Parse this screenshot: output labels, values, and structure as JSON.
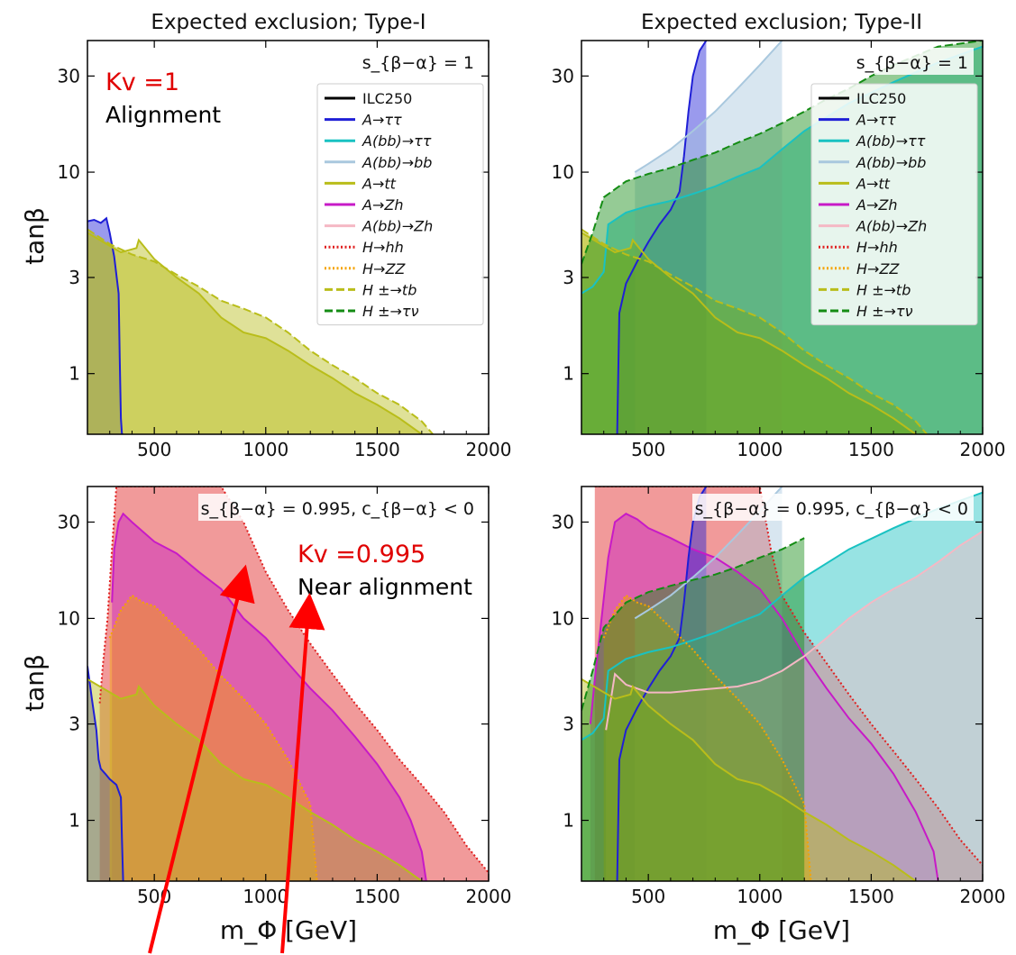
{
  "chart_data": [
    {
      "type": "area",
      "title": "Expected exclusion; Type-I",
      "xlabel": "",
      "ylabel": "tanβ",
      "xlim": [
        200,
        2000
      ],
      "ylim": [
        0.5,
        45
      ],
      "yscale": "log",
      "x_ticks": [
        500,
        1000,
        1500,
        2000
      ],
      "y_ticks": [
        1,
        3,
        10,
        30
      ],
      "legend_title": "s_{β−α} = 1",
      "legend_placement": "top-right",
      "annotation_red": "Kv =1",
      "annotation_black": "Alignment",
      "series": [
        {
          "name": "A→ττ",
          "color": "#1f1fd6",
          "style": "solid",
          "x": [
            200,
            230,
            260,
            285,
            300,
            320,
            340,
            345,
            350,
            355,
            360
          ],
          "y": [
            5.7,
            5.8,
            5.6,
            5.9,
            5.0,
            3.8,
            2.5,
            1.2,
            0.6,
            0.5,
            0.5
          ]
        },
        {
          "name": "A→tt",
          "color": "#b9bd1a",
          "style": "solid",
          "x": [
            200,
            350,
            420,
            430,
            500,
            600,
            700,
            800,
            900,
            1000,
            1100,
            1200,
            1300,
            1400,
            1500,
            1600,
            1700
          ],
          "y": [
            5.0,
            4.0,
            4.2,
            4.6,
            3.7,
            3.0,
            2.5,
            1.9,
            1.6,
            1.5,
            1.3,
            1.1,
            0.95,
            0.8,
            0.7,
            0.6,
            0.5
          ]
        },
        {
          "name": "H ±→tb",
          "color": "#b9bd1a",
          "style": "dashed",
          "x": [
            200,
            300,
            400,
            500,
            600,
            700,
            800,
            900,
            1000,
            1100,
            1200,
            1300,
            1400,
            1500,
            1600,
            1700,
            1750
          ],
          "y": [
            5.2,
            4.4,
            3.9,
            3.6,
            3.1,
            2.7,
            2.3,
            2.1,
            1.9,
            1.6,
            1.3,
            1.1,
            0.95,
            0.8,
            0.7,
            0.58,
            0.5
          ]
        }
      ]
    },
    {
      "type": "area",
      "title": "Expected exclusion; Type-II",
      "xlabel": "",
      "ylabel": "",
      "xlim": [
        200,
        2000
      ],
      "ylim": [
        0.5,
        45
      ],
      "yscale": "log",
      "x_ticks": [
        500,
        1000,
        1500,
        2000
      ],
      "y_ticks": [
        1,
        3,
        10,
        30
      ],
      "legend_title": "s_{β−α} = 1",
      "legend_placement": "top-right",
      "legend_items": [
        {
          "name": "ILC250",
          "color": "#000000",
          "style": "solid"
        },
        {
          "name": "A→ττ",
          "color": "#1f1fd6",
          "style": "solid"
        },
        {
          "name": "A(bb)→ττ",
          "color": "#19c2c2",
          "style": "solid"
        },
        {
          "name": "A(bb)→bb",
          "color": "#a9c8de",
          "style": "solid"
        },
        {
          "name": "A→tt",
          "color": "#b9bd1a",
          "style": "solid"
        },
        {
          "name": "A→Zh",
          "color": "#c71ac7",
          "style": "solid"
        },
        {
          "name": "A(bb)→Zh",
          "color": "#f5b8c4",
          "style": "solid"
        },
        {
          "name": "H→hh",
          "color": "#e02020",
          "style": "dotted"
        },
        {
          "name": "H→ZZ",
          "color": "#f5a300",
          "style": "dotted"
        },
        {
          "name": "H ±→tb",
          "color": "#b9bd1a",
          "style": "dashed"
        },
        {
          "name": "H ±→τν",
          "color": "#148c14",
          "style": "dashed"
        }
      ],
      "series": [
        {
          "name": "A→ττ",
          "color": "#1f1fd6",
          "style": "solid",
          "x": [
            360,
            370,
            400,
            450,
            500,
            550,
            600,
            640,
            660,
            680,
            700,
            730,
            760
          ],
          "y": [
            0.5,
            2.0,
            2.8,
            3.6,
            4.5,
            5.5,
            6.5,
            8.0,
            12,
            20,
            30,
            40,
            45
          ]
        },
        {
          "name": "A(bb)→ττ",
          "color": "#19c2c2",
          "style": "solid",
          "x": [
            200,
            250,
            300,
            320,
            400,
            500,
            600,
            700,
            800,
            900,
            1000,
            1100,
            1200,
            1400,
            1600,
            1800,
            2000
          ],
          "y": [
            2.5,
            2.7,
            3.2,
            5.5,
            6.3,
            6.8,
            7.2,
            7.8,
            8.5,
            9.5,
            10.5,
            13,
            16,
            22,
            28,
            35,
            42
          ]
        },
        {
          "name": "A(bb)→bb",
          "color": "#a9c8de",
          "style": "solid",
          "x": [
            440,
            500,
            600,
            700,
            800,
            900,
            1000,
            1100
          ],
          "y": [
            10,
            11,
            13,
            16,
            20,
            26,
            34,
            45
          ]
        },
        {
          "name": "A→tt",
          "color": "#b9bd1a",
          "style": "solid",
          "x": [
            200,
            350,
            420,
            430,
            500,
            600,
            700,
            800,
            900,
            1000,
            1100,
            1200,
            1300,
            1400,
            1500,
            1600,
            1700
          ],
          "y": [
            5.0,
            4.0,
            4.2,
            4.6,
            3.7,
            3.0,
            2.5,
            1.9,
            1.6,
            1.5,
            1.3,
            1.1,
            0.95,
            0.8,
            0.7,
            0.6,
            0.5
          ]
        },
        {
          "name": "H ±→tb",
          "color": "#b9bd1a",
          "style": "dashed",
          "x": [
            200,
            300,
            400,
            500,
            600,
            700,
            800,
            900,
            1000,
            1100,
            1200,
            1300,
            1400,
            1500,
            1600,
            1700,
            1750
          ],
          "y": [
            5.2,
            4.4,
            3.9,
            3.6,
            3.1,
            2.7,
            2.3,
            2.1,
            1.9,
            1.6,
            1.3,
            1.1,
            0.95,
            0.8,
            0.7,
            0.58,
            0.5
          ]
        },
        {
          "name": "H ±→τν",
          "color": "#148c14",
          "style": "dashed",
          "x": [
            200,
            250,
            300,
            400,
            500,
            600,
            700,
            800,
            900,
            1000,
            1100,
            1200,
            1300,
            1400,
            1500,
            1600,
            1800,
            2000
          ],
          "y": [
            3.5,
            5.0,
            7.5,
            9.0,
            9.8,
            10.5,
            11.5,
            12.5,
            14,
            15.5,
            17.5,
            20,
            23,
            26,
            30,
            34,
            42,
            45
          ]
        }
      ]
    },
    {
      "type": "area",
      "title": "",
      "xlabel": "m_Φ [GeV]",
      "ylabel": "tanβ",
      "xlim": [
        200,
        2000
      ],
      "ylim": [
        0.5,
        45
      ],
      "yscale": "log",
      "x_ticks": [
        500,
        1000,
        1500,
        2000
      ],
      "y_ticks": [
        1,
        3,
        10,
        30
      ],
      "legend_title": "s_{β−α} = 0.995, c_{β−α} < 0",
      "legend_placement": "top-right",
      "annotation_red": "Kv =0.995",
      "annotation_black": "Near alignment",
      "series": [
        {
          "name": "H→hh",
          "color": "#e02020",
          "style": "dotted",
          "x": [
            255,
            270,
            290,
            310,
            330,
            360,
            400,
            500,
            600,
            700,
            800,
            900,
            1000,
            1100,
            1200,
            1300,
            1400,
            1500,
            1600,
            1700,
            1800,
            1900,
            2000
          ],
          "y": [
            3.8,
            6,
            10,
            22,
            45,
            45,
            45,
            45,
            45,
            45,
            45,
            30,
            17,
            11,
            7.5,
            5.3,
            3.8,
            2.8,
            2.0,
            1.5,
            1.1,
            0.75,
            0.55
          ]
        },
        {
          "name": "A→Zh",
          "color": "#c71ac7",
          "style": "solid",
          "x": [
            310,
            320,
            340,
            360,
            400,
            500,
            600,
            700,
            800,
            900,
            1000,
            1100,
            1200,
            1300,
            1400,
            1500,
            1600,
            1650,
            1700,
            1720
          ],
          "y": [
            12,
            22,
            30,
            33,
            30,
            24,
            21,
            17,
            14,
            10,
            8,
            6,
            4.5,
            3.5,
            2.6,
            1.9,
            1.3,
            1.0,
            0.7,
            0.5
          ]
        },
        {
          "name": "A→ττ",
          "color": "#1f1fd6",
          "style": "solid",
          "x": [
            200,
            220,
            240,
            250,
            260,
            280,
            300,
            330,
            350,
            355,
            360
          ],
          "y": [
            5.8,
            4.0,
            2.8,
            2.0,
            1.8,
            1.7,
            1.6,
            1.5,
            1.3,
            0.8,
            0.5
          ]
        },
        {
          "name": "H→ZZ",
          "color": "#f5a300",
          "style": "dotted",
          "x": [
            300,
            350,
            400,
            450,
            500,
            600,
            700,
            800,
            900,
            1000,
            1100,
            1200,
            1230
          ],
          "y": [
            8,
            11,
            13,
            12,
            11.5,
            9,
            7,
            5.2,
            4.0,
            3.0,
            2.0,
            1.2,
            0.5
          ]
        },
        {
          "name": "A→tt",
          "color": "#b9bd1a",
          "style": "solid",
          "x": [
            200,
            350,
            420,
            430,
            500,
            600,
            700,
            800,
            900,
            1000,
            1100,
            1200,
            1300,
            1400,
            1500,
            1600,
            1700
          ],
          "y": [
            5.0,
            4.0,
            4.2,
            4.6,
            3.7,
            3.0,
            2.5,
            1.9,
            1.6,
            1.5,
            1.3,
            1.1,
            0.95,
            0.8,
            0.7,
            0.6,
            0.5
          ]
        }
      ]
    },
    {
      "type": "area",
      "title": "",
      "xlabel": "m_Φ [GeV]",
      "ylabel": "",
      "xlim": [
        200,
        2000
      ],
      "ylim": [
        0.5,
        45
      ],
      "yscale": "log",
      "x_ticks": [
        500,
        1000,
        1500,
        2000
      ],
      "y_ticks": [
        1,
        3,
        10,
        30
      ],
      "legend_title": "s_{β−α} = 0.995, c_{β−α} < 0",
      "legend_placement": "top-right",
      "series": [
        {
          "name": "H→hh",
          "color": "#e02020",
          "style": "dotted",
          "x": [
            260,
            400,
            600,
            800,
            900,
            1000,
            1050,
            1100,
            1200,
            1300,
            1400,
            1500,
            1600,
            1700,
            1800,
            1900,
            2000
          ],
          "y": [
            45,
            45,
            45,
            45,
            45,
            45,
            22,
            13,
            8.5,
            6.0,
            4.2,
            3.0,
            2.2,
            1.6,
            1.15,
            0.8,
            0.6
          ]
        },
        {
          "name": "A→Zh",
          "color": "#c71ac7",
          "style": "solid",
          "x": [
            240,
            260,
            290,
            320,
            350,
            400,
            450,
            500,
            600,
            700,
            800,
            900,
            1000,
            1100,
            1200,
            1300,
            1400,
            1500,
            1600,
            1700,
            1780,
            1800
          ],
          "y": [
            3,
            5,
            10,
            20,
            30,
            33,
            31,
            28,
            25,
            22,
            20,
            17,
            14,
            10,
            6.5,
            4.5,
            3.2,
            2.4,
            1.7,
            1.1,
            0.7,
            0.5
          ]
        },
        {
          "name": "A→ττ",
          "color": "#1f1fd6",
          "style": "solid",
          "x": [
            360,
            370,
            400,
            450,
            500,
            550,
            600,
            640,
            660,
            680,
            700,
            730,
            760
          ],
          "y": [
            0.5,
            2.0,
            2.8,
            3.6,
            4.5,
            5.5,
            6.5,
            8.0,
            12,
            20,
            30,
            40,
            45
          ]
        },
        {
          "name": "A(bb)→ττ",
          "color": "#19c2c2",
          "style": "solid",
          "x": [
            200,
            250,
            300,
            320,
            400,
            500,
            600,
            700,
            800,
            900,
            1000,
            1100,
            1200,
            1400,
            1600,
            1800,
            2000
          ],
          "y": [
            2.5,
            2.7,
            3.2,
            5.5,
            6.3,
            6.8,
            7.2,
            7.8,
            8.5,
            9.5,
            10.5,
            13,
            16,
            22,
            28,
            35,
            42
          ]
        },
        {
          "name": "A(bb)→bb",
          "color": "#a9c8de",
          "style": "solid",
          "x": [
            440,
            500,
            600,
            700,
            800,
            900,
            1000,
            1100
          ],
          "y": [
            10,
            11,
            13,
            16,
            20,
            26,
            34,
            45
          ]
        },
        {
          "name": "A(bb)→Zh",
          "color": "#f5b8c4",
          "style": "solid",
          "x": [
            310,
            350,
            400,
            500,
            600,
            700,
            800,
            900,
            1000,
            1100,
            1200,
            1300,
            1400,
            1500,
            1600,
            1700,
            1800,
            1900,
            2000
          ],
          "y": [
            2.8,
            5.3,
            4.7,
            4.3,
            4.3,
            4.4,
            4.5,
            4.6,
            4.9,
            5.5,
            6.5,
            8.0,
            10,
            12,
            14,
            16,
            19,
            23,
            27
          ]
        },
        {
          "name": "H→ZZ",
          "color": "#f5a300",
          "style": "dotted",
          "x": [
            300,
            350,
            400,
            450,
            500,
            600,
            700,
            800,
            900,
            1000,
            1100,
            1200,
            1230
          ],
          "y": [
            8,
            11,
            13,
            12,
            11.5,
            9,
            7,
            5.2,
            4.0,
            3.0,
            2.0,
            1.2,
            0.5
          ]
        },
        {
          "name": "A→tt",
          "color": "#b9bd1a",
          "style": "solid",
          "x": [
            200,
            350,
            420,
            430,
            500,
            600,
            700,
            800,
            900,
            1000,
            1100,
            1200,
            1300,
            1400,
            1500,
            1600,
            1700
          ],
          "y": [
            5.0,
            4.0,
            4.2,
            4.6,
            3.7,
            3.0,
            2.5,
            1.9,
            1.6,
            1.5,
            1.3,
            1.1,
            0.95,
            0.8,
            0.7,
            0.6,
            0.5
          ]
        },
        {
          "name": "H ±→τν",
          "color": "#148c14",
          "style": "dashed",
          "x": [
            200,
            250,
            300,
            400,
            500,
            600,
            700,
            800,
            900,
            1000,
            1100,
            1200
          ],
          "y": [
            3.5,
            5.5,
            9,
            12,
            13.5,
            14.5,
            15.5,
            16.5,
            18,
            20,
            22,
            25
          ]
        }
      ]
    }
  ]
}
